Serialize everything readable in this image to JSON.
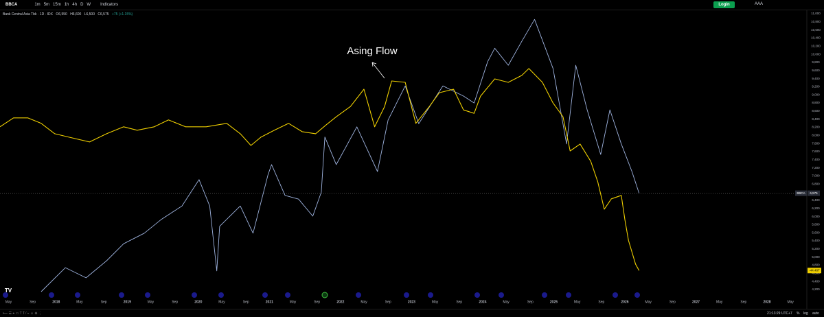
{
  "toolbar": {
    "symbol": "BBCA",
    "intervals": [
      "1m",
      "5m",
      "15m",
      "1h",
      "4h",
      "D",
      "W"
    ],
    "indicators": "Indicators",
    "login": "Login",
    "account": "AAA"
  },
  "info": {
    "name": "Bank Central Asia Tbk · 1D · IDX",
    "open": "O6,550",
    "high": "H6,600",
    "low": "L6,500",
    "close": "C6,575",
    "change": "+75 (+1.15%)"
  },
  "status": {
    "time": "21:13:29 UTC+7",
    "percent": "%",
    "log": "log",
    "auto": "auto"
  },
  "chart_data": {
    "type": "line",
    "annotation": "Asing Flow",
    "xlim": [
      2017.21,
      2028.56
    ],
    "ylim": [
      4200,
      11000
    ],
    "y2lim": [
      -50,
      30
    ],
    "xticks": [
      {
        "value": 2017.33,
        "label": "May"
      },
      {
        "value": 2017.67,
        "label": "Sep"
      },
      2018,
      {
        "value": 2018.33,
        "label": "May"
      },
      {
        "value": 2018.67,
        "label": "Sep"
      },
      2019,
      {
        "value": 2019.33,
        "label": "May"
      },
      {
        "value": 2019.67,
        "label": "Sep"
      },
      2020,
      {
        "value": 2020.33,
        "label": "May"
      },
      {
        "value": 2020.67,
        "label": "Sep"
      },
      2021,
      {
        "value": 2021.33,
        "label": "May"
      },
      {
        "value": 2021.67,
        "label": "Sep"
      },
      2022,
      {
        "value": 2022.33,
        "label": "May"
      },
      {
        "value": 2022.67,
        "label": "Sep"
      },
      2023,
      {
        "value": 2023.33,
        "label": "May"
      },
      {
        "value": 2023.67,
        "label": "Sep"
      },
      2024,
      {
        "value": 2024.33,
        "label": "May"
      },
      {
        "value": 2024.67,
        "label": "Sep"
      },
      2025,
      {
        "value": 2025.33,
        "label": "May"
      },
      {
        "value": 2025.67,
        "label": "Sep"
      },
      2026,
      {
        "value": 2026.33,
        "label": "May"
      },
      {
        "value": 2026.67,
        "label": "Sep"
      },
      2027,
      {
        "value": 2027.33,
        "label": "May"
      },
      {
        "value": 2027.67,
        "label": "Sep"
      },
      2028,
      {
        "value": 2028.33,
        "label": "May"
      }
    ],
    "yticks": [
      {
        "value": 4200,
        "label": "4,200"
      },
      {
        "value": 4400,
        "label": "4,400"
      },
      {
        "value": 4600,
        "label": "4,600"
      },
      {
        "value": 4800,
        "label": "4,800"
      },
      {
        "value": 5000,
        "label": "5,000"
      },
      {
        "value": 5200,
        "label": "5,200"
      },
      {
        "value": 5400,
        "label": "5,400"
      },
      {
        "value": 5600,
        "label": "5,600"
      },
      {
        "value": 5800,
        "label": "5,800"
      },
      {
        "value": 6000,
        "label": "6,000"
      },
      {
        "value": 6200,
        "label": "6,200"
      },
      {
        "value": 6400,
        "label": "6,400"
      },
      {
        "value": 6600,
        "label": "6,600"
      },
      {
        "value": 6800,
        "label": "6,800"
      },
      {
        "value": 7000,
        "label": "7,000"
      },
      {
        "value": 7200,
        "label": "7,200"
      },
      {
        "value": 7400,
        "label": "7,400"
      },
      {
        "value": 7600,
        "label": "7,600"
      },
      {
        "value": 7800,
        "label": "7,800"
      },
      {
        "value": 8000,
        "label": "8,000"
      },
      {
        "value": 8200,
        "label": "8,200"
      },
      {
        "value": 8400,
        "label": "8,400"
      },
      {
        "value": 8600,
        "label": "8,600"
      },
      {
        "value": 8800,
        "label": "8,800"
      },
      {
        "value": 9000,
        "label": "9,000"
      },
      {
        "value": 9200,
        "label": "9,200"
      },
      {
        "value": 9400,
        "label": "9,400"
      },
      {
        "value": 9600,
        "label": "9,600"
      },
      {
        "value": 9800,
        "label": "9,800"
      },
      {
        "value": 10000,
        "label": "10,000"
      },
      {
        "value": 10200,
        "label": "10,200"
      },
      {
        "value": 10400,
        "label": "10,400"
      },
      {
        "value": 10600,
        "label": "10,600"
      },
      {
        "value": 10800,
        "label": "10,800"
      },
      {
        "value": 11000,
        "label": "11,000"
      }
    ],
    "price_tag": {
      "value": 6575,
      "label": "6,575"
    },
    "flow_tag": {
      "value": -44.48,
      "label": "-44.48T"
    },
    "series": [
      {
        "name": "BBCA",
        "color": "#9fb4e0",
        "x": [
          2017.79,
          2018.13,
          2018.42,
          2018.71,
          2018.95,
          2019.24,
          2019.48,
          2019.77,
          2020.01,
          2020.16,
          2020.26,
          2020.3,
          2020.59,
          2020.77,
          2020.98,
          2021.03,
          2021.22,
          2021.41,
          2021.61,
          2021.73,
          2021.78,
          2021.94,
          2022.23,
          2022.52,
          2022.67,
          2022.91,
          2023.1,
          2023.44,
          2023.73,
          2023.88,
          2024.07,
          2024.17,
          2024.36,
          2024.55,
          2024.73,
          2024.99,
          2025.18,
          2025.31,
          2025.47,
          2025.66,
          2025.79,
          2025.95,
          2026.1,
          2026.2
        ],
        "values": [
          4150,
          4740,
          4490,
          4910,
          5330,
          5590,
          5930,
          6260,
          6910,
          6260,
          4660,
          5760,
          6260,
          5590,
          7030,
          7280,
          6520,
          6430,
          6010,
          6600,
          7960,
          7280,
          8210,
          7110,
          8380,
          9220,
          8290,
          9220,
          8970,
          8800,
          9820,
          10150,
          9730,
          10320,
          10860,
          9650,
          7790,
          9730,
          8630,
          7530,
          8630,
          7790,
          7110,
          6575
        ]
      },
      {
        "color": "#f0d000",
        "axis": "y2",
        "x": [
          2017.21,
          2017.4,
          2017.6,
          2017.79,
          2017.98,
          2018.18,
          2018.47,
          2018.71,
          2018.95,
          2019.14,
          2019.38,
          2019.58,
          2019.82,
          2020.11,
          2020.4,
          2020.59,
          2020.74,
          2020.88,
          2021.07,
          2021.27,
          2021.46,
          2021.65,
          2021.8,
          2021.94,
          2022.14,
          2022.33,
          2022.48,
          2022.62,
          2022.72,
          2022.91,
          2023.06,
          2023.25,
          2023.39,
          2023.59,
          2023.73,
          2023.88,
          2023.97,
          2024.17,
          2024.36,
          2024.55,
          2024.65,
          2024.84,
          2024.99,
          2025.13,
          2025.23,
          2025.37,
          2025.52,
          2025.62,
          2025.71,
          2025.81,
          2025.95,
          2026.0,
          2026.05,
          2026.15,
          2026.2
        ],
        "values": [
          -2.8,
          -0.2,
          -0.2,
          -1.8,
          -4.8,
          -5.8,
          -7.2,
          -4.8,
          -2.8,
          -3.8,
          -2.8,
          -0.8,
          -2.8,
          -2.8,
          -1.8,
          -4.8,
          -8.2,
          -5.8,
          -3.8,
          -1.8,
          -4.2,
          -4.8,
          -2.2,
          0.1,
          3.1,
          8.1,
          -2.8,
          3.1,
          10.5,
          10.1,
          -1.8,
          3.1,
          7.1,
          8.1,
          2.1,
          1.1,
          6.1,
          11.1,
          10.1,
          12.1,
          14.1,
          10.1,
          4.1,
          0.1,
          -9.8,
          -7.8,
          -12.8,
          -18.8,
          -26.7,
          -23.7,
          -22.7,
          -29.7,
          -35.7,
          -42.6,
          -44.48
        ]
      }
    ]
  }
}
